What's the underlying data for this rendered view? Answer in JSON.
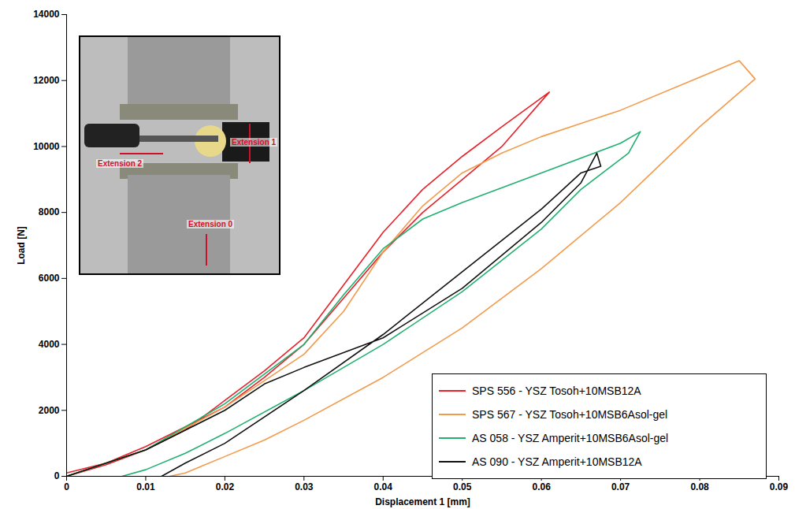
{
  "chart_data": {
    "type": "line",
    "x_label": "Displacement 1 [mm]",
    "y_label": "Load [N]",
    "xlim": [
      0,
      0.09
    ],
    "xticks": [
      0,
      0.01,
      0.02,
      0.03,
      0.04,
      0.05,
      0.06,
      0.07,
      0.08,
      0.09
    ],
    "ylim": [
      0,
      14000
    ],
    "yticks": [
      0,
      2000,
      4000,
      6000,
      8000,
      10000,
      12000,
      14000
    ],
    "grid": false,
    "legend": "lower right",
    "annotations": [
      "Extension 2",
      "Extension 1",
      "Extension 0"
    ],
    "series": [
      {
        "name": "SPS 556 - YSZ Tosoh+10MSB12A",
        "color": "#e8212b",
        "x": [
          0,
          0.005,
          0.01,
          0.015,
          0.02,
          0.025,
          0.03,
          0.035,
          0.04,
          0.045,
          0.05,
          0.055,
          0.061,
          0.055,
          0.05,
          0.045,
          0.04,
          0.035,
          0.03,
          0.025,
          0.02,
          0.015,
          0.01,
          0.005,
          0
        ],
        "values": [
          0,
          350,
          800,
          1400,
          2300,
          3200,
          4200,
          5800,
          7400,
          8700,
          9700,
          10600,
          11650,
          10000,
          9000,
          8000,
          6800,
          5400,
          4000,
          3000,
          2100,
          1500,
          900,
          400,
          100
        ]
      },
      {
        "name": "SPS 567 - YSZ Tosoh+10MSB6Asol-gel",
        "color": "#f39a4b",
        "x": [
          0,
          0.01,
          0.02,
          0.03,
          0.035,
          0.04,
          0.045,
          0.05,
          0.055,
          0.06,
          0.07,
          0.08,
          0.085,
          0.087,
          0.08,
          0.07,
          0.06,
          0.05,
          0.04,
          0.03,
          0.025,
          0.02,
          0.015,
          0.013
        ],
        "values": [
          0,
          800,
          2100,
          3700,
          5000,
          6800,
          8200,
          9200,
          9800,
          10300,
          11100,
          12100,
          12600,
          12050,
          10600,
          8300,
          6300,
          4500,
          3000,
          1700,
          1100,
          600,
          100,
          0
        ]
      },
      {
        "name": "AS 058 - YSZ Amperit+10MSB6Asol-gel",
        "color": "#20b070",
        "x": [
          0,
          0.01,
          0.02,
          0.03,
          0.035,
          0.04,
          0.045,
          0.05,
          0.06,
          0.07,
          0.0725,
          0.071,
          0.065,
          0.06,
          0.05,
          0.04,
          0.03,
          0.02,
          0.015,
          0.01,
          0.007
        ],
        "values": [
          0,
          800,
          2200,
          4000,
          5500,
          6900,
          7800,
          8300,
          9200,
          10100,
          10450,
          9800,
          8700,
          7500,
          5600,
          4000,
          2600,
          1300,
          700,
          200,
          0
        ]
      },
      {
        "name": "AS 090 - YSZ Amperit+10MSB12A",
        "color": "#111111",
        "x": [
          0,
          0.01,
          0.02,
          0.025,
          0.03,
          0.04,
          0.05,
          0.06,
          0.065,
          0.067,
          0.0675,
          0.065,
          0.06,
          0.05,
          0.04,
          0.03,
          0.02,
          0.015,
          0.012
        ],
        "values": [
          0,
          800,
          2000,
          2800,
          3300,
          4200,
          5700,
          7700,
          8900,
          9800,
          9400,
          9200,
          8100,
          6200,
          4300,
          2600,
          1000,
          400,
          0
        ]
      }
    ]
  }
}
